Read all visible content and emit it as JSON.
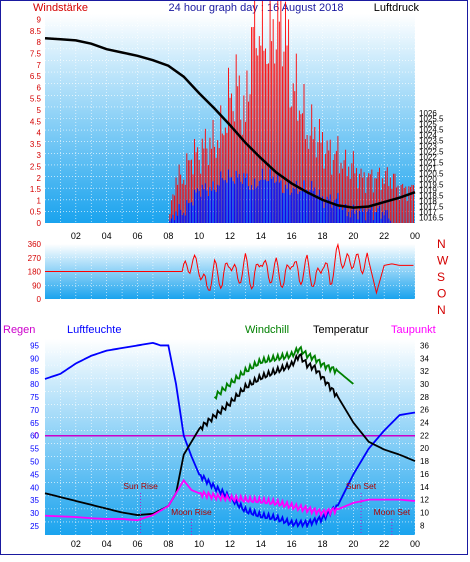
{
  "header": {
    "left_label": "Windstärke",
    "center_label": "24 hour graph day : 16 August 2018",
    "right_label": "Luftdruck"
  },
  "colors": {
    "wind_axis": "#d40000",
    "pressure_axis": "#000000",
    "frame": "#1a1aa0",
    "gradient_top": "#ffffff",
    "gradient_bottom": "#1aa3ee",
    "grid": "#ffffff",
    "gust": "#ff0000",
    "wind": "#0000ff",
    "pressure_line": "#000000",
    "humidity": "#0000ff",
    "windchill": "#008000",
    "temperature": "#000000",
    "dewpoint": "#ff00ff",
    "rain_label": "#cc00cc",
    "zero_line": "#cc00cc"
  },
  "chart_data": [
    {
      "type": "bar",
      "id": "wind",
      "title": "",
      "xlabel": "",
      "left_axis_label": "Windstärke",
      "right_axis_label": "Luftdruck",
      "x_ticks": [
        "02",
        "04",
        "06",
        "08",
        "10",
        "12",
        "14",
        "16",
        "18",
        "20",
        "22",
        "00"
      ],
      "ylim_left": [
        0,
        9.25
      ],
      "y_ticks_left": [
        "0",
        "0.5",
        "1",
        "1.5",
        "2",
        "2.5",
        "3",
        "3.5",
        "4",
        "4.5",
        "5",
        "5.5",
        "6",
        "6.5",
        "7",
        "7.5",
        "8",
        "8.5",
        "9"
      ],
      "ylim_right": [
        1016.0,
        1035.0
      ],
      "y_ticks_right": [
        "1016.5",
        "1017",
        "1017.5",
        "1018",
        "1018.5",
        "1019",
        "1019.5",
        "1020",
        "1020.5",
        "1021",
        "1021.5",
        "1022",
        "1022.5",
        "1023",
        "1023.5",
        "1024",
        "1024.5",
        "1025",
        "1025.5",
        "1026"
      ],
      "pressure_series": {
        "name": "Luftdruck",
        "x_hours": [
          0,
          1,
          2,
          3,
          4,
          5,
          6,
          7,
          8,
          9,
          10,
          11,
          12,
          13,
          14,
          15,
          16,
          17,
          18,
          19,
          20,
          21,
          22,
          23,
          24
        ],
        "values": [
          1032.8,
          1032.7,
          1032.6,
          1032.3,
          1031.8,
          1031.5,
          1031.2,
          1030.8,
          1030.3,
          1029.3,
          1027.8,
          1026.4,
          1024.9,
          1023.3,
          1021.9,
          1020.6,
          1019.6,
          1018.8,
          1018.1,
          1017.6,
          1017.4,
          1017.5,
          1017.9,
          1018.3,
          1018.8
        ]
      },
      "gust_series": {
        "name": "Böen",
        "x_hours": [
          0,
          1,
          2,
          3,
          4,
          5,
          6,
          7,
          8,
          8.5,
          9,
          9.5,
          10,
          10.5,
          11,
          11.5,
          12,
          12.5,
          13,
          13.5,
          14,
          14.5,
          15,
          15.5,
          16,
          16.5,
          17,
          17.5,
          18,
          18.5,
          19,
          19.5,
          20,
          20.5,
          21,
          21.5,
          22,
          22.5,
          23,
          23.5,
          24
        ],
        "values": [
          0,
          0,
          0,
          0,
          0,
          0,
          0,
          0,
          0,
          2,
          2,
          3,
          3,
          3.5,
          3.5,
          4,
          5.5,
          6,
          4.5,
          9,
          8.5,
          8,
          9,
          9,
          6,
          5.5,
          4,
          4,
          3.5,
          3,
          3,
          2.5,
          2.5,
          2,
          2,
          2,
          2,
          2,
          1.5,
          1.5,
          1.5
        ]
      },
      "wind_series": {
        "name": "Wind",
        "x_hours": [
          0,
          1,
          2,
          3,
          4,
          5,
          6,
          7,
          8,
          8.5,
          9,
          9.5,
          10,
          10.5,
          11,
          11.5,
          12,
          12.5,
          13,
          13.5,
          14,
          14.5,
          15,
          15.5,
          16,
          16.5,
          17,
          17.5,
          18,
          18.5,
          19,
          19.5,
          20,
          20.5,
          21,
          21.5,
          22,
          22.5,
          23,
          23.5,
          24
        ],
        "values": [
          0,
          0,
          0,
          0,
          0,
          0,
          0,
          0,
          0,
          0.5,
          0.5,
          1,
          1.5,
          1.5,
          1.5,
          2,
          2,
          2,
          2,
          1.5,
          2,
          2,
          2,
          1.5,
          1.5,
          1.5,
          1.5,
          1.5,
          1,
          1,
          1,
          0.5,
          0.5,
          0.5,
          0.5,
          0.5,
          0.5,
          0,
          0,
          0,
          0
        ]
      }
    },
    {
      "type": "line",
      "id": "direction",
      "title": "",
      "right_axis_labels": [
        "N",
        "W",
        "S",
        "O",
        "N"
      ],
      "ylim": [
        0,
        360
      ],
      "y_ticks": [
        "0",
        "90",
        "180",
        "270",
        "360"
      ],
      "series": [
        {
          "x_hours": [
            0,
            2,
            4,
            6,
            8,
            9,
            9.5,
            10,
            10.5,
            11,
            11.5,
            12,
            12.5,
            13,
            13.5,
            14,
            14.5,
            15,
            15.5,
            16,
            16.5,
            17,
            17.5,
            18,
            18.5,
            19,
            19.5,
            20,
            20.5,
            21,
            21.5,
            22,
            22.5,
            23,
            23.5,
            24
          ],
          "values": [
            180,
            180,
            180,
            180,
            180,
            180,
            240,
            210,
            60,
            200,
            110,
            260,
            120,
            240,
            90,
            280,
            140,
            210,
            100,
            270,
            130,
            230,
            90,
            250,
            120,
            310,
            230,
            260,
            220,
            250,
            40,
            220,
            230,
            220,
            220,
            220
          ]
        }
      ]
    },
    {
      "type": "line",
      "id": "temperature",
      "title": "",
      "left_axis_label": "Regen",
      "legend": [
        "Luftfeuchte",
        "Windchill",
        "Temperatur",
        "Taupunkt"
      ],
      "left_ticks": [
        "25",
        "30",
        "35",
        "40",
        "45",
        "50",
        "55",
        "60",
        "65",
        "70",
        "75",
        "80",
        "85",
        "90",
        "95"
      ],
      "right_ticks": [
        "8",
        "10",
        "12",
        "14",
        "16",
        "18",
        "20",
        "22",
        "24",
        "26",
        "28",
        "30",
        "32",
        "34",
        "36"
      ],
      "zero_label": "0",
      "ylim_humidity": [
        21.5,
        97.5
      ],
      "ylim_temperature": [
        6.5,
        37
      ],
      "zero_line_value": 60,
      "annotations": [
        {
          "text": "Sun Rise",
          "hour": 6.2
        },
        {
          "text": "Moon Rise",
          "hour": 9.5
        },
        {
          "text": "Sun Set",
          "hour": 20.5
        },
        {
          "text": "Moon Set",
          "hour": 22.5
        }
      ],
      "series": [
        {
          "name": "Luftfeuchte",
          "x_hours": [
            0,
            1,
            2,
            3,
            4,
            5,
            6,
            7,
            7.5,
            8,
            8.5,
            9,
            9.5,
            10,
            11,
            12,
            13,
            14,
            15,
            16,
            17,
            18,
            19,
            20,
            21,
            22,
            23,
            24
          ],
          "values": [
            82,
            84,
            88,
            91,
            93,
            94,
            95,
            96,
            95,
            95,
            80,
            60,
            52,
            45,
            40,
            36,
            31,
            29,
            28,
            26,
            26,
            28,
            33,
            45,
            55,
            62,
            68,
            69
          ]
        },
        {
          "name": "Windchill",
          "x_hours": [
            11,
            11.5,
            12,
            13,
            14,
            15,
            16,
            16.5,
            17,
            17.5,
            18,
            19,
            19.5,
            20
          ],
          "values": [
            28,
            29,
            30,
            32,
            33.5,
            34,
            34.5,
            35.5,
            34.5,
            34,
            33,
            32,
            31,
            30
          ]
        },
        {
          "name": "Temperatur",
          "x_hours": [
            0,
            1,
            2,
            3,
            4,
            5,
            6,
            7,
            8,
            8.5,
            9,
            9.5,
            10,
            11,
            12,
            13,
            14,
            15,
            16,
            16.5,
            17,
            17.5,
            18,
            19,
            20,
            21,
            22,
            23,
            24
          ],
          "values": [
            13,
            12.4,
            11.8,
            11.2,
            10.6,
            10,
            9.6,
            9.8,
            11,
            13,
            19,
            21,
            23,
            25,
            27,
            29.5,
            31,
            32,
            33,
            34.5,
            33,
            32.5,
            31,
            28,
            24,
            21,
            19.8,
            19,
            18
          ]
        },
        {
          "name": "Taupunkt",
          "x_hours": [
            0,
            1,
            2,
            3,
            4,
            5,
            6,
            7,
            8,
            8.5,
            9,
            9.5,
            10,
            11,
            12,
            13,
            14,
            15,
            16,
            17,
            18,
            19,
            20,
            21,
            22,
            23,
            24
          ],
          "values": [
            9.5,
            9.4,
            9.3,
            9.1,
            9,
            9,
            8.8,
            9.6,
            11,
            13,
            15,
            13.5,
            13,
            12.5,
            12.2,
            12,
            11.8,
            11.5,
            11,
            10.5,
            10,
            10.5,
            11.5,
            12,
            12,
            12,
            11.8
          ]
        }
      ]
    }
  ]
}
